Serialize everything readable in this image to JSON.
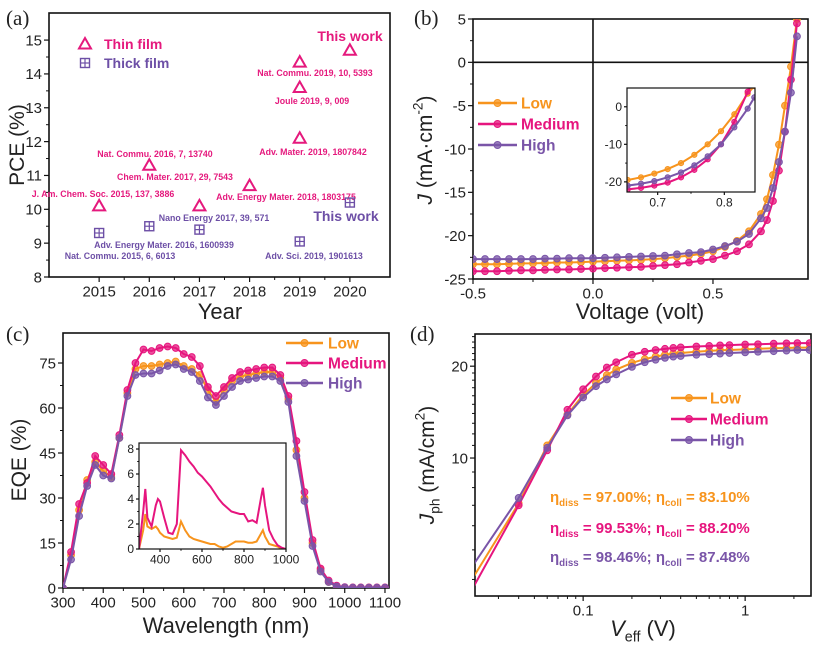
{
  "colors": {
    "low": "#F7941D",
    "medium": "#E6157E",
    "high": "#7A55A8",
    "thin_film": "#E5197D",
    "thick_film": "#6D4FA6"
  },
  "chart_data": [
    {
      "panel_label": "(a)",
      "type": "scatter",
      "xlabel": "Year",
      "ylabel": "PCE (%)",
      "xlim": [
        2014,
        2020.8
      ],
      "ylim": [
        8,
        15.8
      ],
      "xticks": [
        2015,
        2016,
        2017,
        2018,
        2019,
        2020
      ],
      "xtick_labels": [
        "2015",
        "2016",
        "2017",
        "2018",
        "2019",
        "2020"
      ],
      "yticks": [
        8,
        9,
        10,
        11,
        12,
        13,
        14,
        15
      ],
      "ytick_labels": [
        "8",
        "9",
        "10",
        "11",
        "12",
        "13",
        "14",
        "15"
      ],
      "legend_position": "top-left",
      "series": [
        {
          "name": "Thin film",
          "marker": "triangle",
          "color": "#E5197D",
          "points": [
            {
              "x": 2015,
              "y": 10.1,
              "label": "J. Am. Chem. Soc. 2015, 137, 3886"
            },
            {
              "x": 2016,
              "y": 11.3,
              "label": "Nat. Commu. 2016, 7, 13740"
            },
            {
              "x": 2017,
              "y": 10.1,
              "label": "Chem. Mater. 2017, 29, 7543"
            },
            {
              "x": 2018,
              "y": 10.7,
              "label": "Adv. Energy Mater. 2018, 1803175"
            },
            {
              "x": 2019,
              "y": 14.35,
              "label": "Nat. Commu. 2019, 10, 5393"
            },
            {
              "x": 2019,
              "y": 13.6,
              "label": "Joule 2019, 9, 009"
            },
            {
              "x": 2019,
              "y": 12.1,
              "label": "Adv. Mater. 2019, 1807842"
            },
            {
              "x": 2020,
              "y": 14.7,
              "label": "This work"
            }
          ]
        },
        {
          "name": "Thick film",
          "marker": "boxed-plus",
          "color": "#6D4FA6",
          "points": [
            {
              "x": 2015,
              "y": 9.3,
              "label": "Nat. Commu. 2015, 6, 6013"
            },
            {
              "x": 2016,
              "y": 9.5,
              "label": "Adv. Energy Mater. 2016, 1600939"
            },
            {
              "x": 2017,
              "y": 9.4,
              "label": "Nano Energy 2017, 39, 571"
            },
            {
              "x": 2019,
              "y": 9.05,
              "label": "Adv. Sci. 2019, 1901613"
            },
            {
              "x": 2020,
              "y": 10.2,
              "label": "This work"
            }
          ]
        }
      ]
    },
    {
      "panel_label": "(b)",
      "type": "line",
      "xlabel": "Voltage (volt)",
      "ylabel_parts": [
        {
          "t": "J",
          "style": "italic"
        },
        {
          "t": " (mA·cm",
          "style": ""
        },
        {
          "t": "-2",
          "style": "sup"
        },
        {
          "t": ")",
          "style": ""
        }
      ],
      "xlim": [
        -0.5,
        0.896
      ],
      "ylim": [
        -25,
        5
      ],
      "xticks": [
        -0.5,
        0,
        0.5
      ],
      "xtick_labels": [
        "-0.5",
        "0.0",
        "0.5"
      ],
      "yticks": [
        -25,
        -20,
        -15,
        -10,
        -5,
        0,
        5
      ],
      "ytick_labels": [
        "-25",
        "-20",
        "-15",
        "-10",
        "-5",
        "0",
        "5"
      ],
      "zero_lines": true,
      "legend_position": "center-left",
      "x": [
        -0.5,
        -0.45,
        -0.4,
        -0.35,
        -0.3,
        -0.25,
        -0.2,
        -0.15,
        -0.1,
        -0.05,
        0,
        0.05,
        0.1,
        0.15,
        0.2,
        0.25,
        0.3,
        0.35,
        0.4,
        0.45,
        0.5,
        0.55,
        0.6,
        0.65,
        0.7,
        0.725,
        0.75,
        0.775,
        0.8,
        0.825,
        0.85
      ],
      "series": [
        {
          "name": "Low",
          "color": "#F7941D",
          "values": [
            -23.3,
            -23.3,
            -23.3,
            -23.25,
            -23.2,
            -23.2,
            -23.15,
            -23.1,
            -23.1,
            -23.05,
            -23.0,
            -22.95,
            -22.9,
            -22.85,
            -22.8,
            -22.7,
            -22.6,
            -22.45,
            -22.3,
            -22.1,
            -21.8,
            -21.3,
            -20.6,
            -19.5,
            -17.5,
            -15.8,
            -13.0,
            -9.5,
            -5.0,
            -0.5,
            5.0
          ]
        },
        {
          "name": "Medium",
          "color": "#E6157E",
          "values": [
            -24.1,
            -24.1,
            -24.1,
            -24.05,
            -24.0,
            -24.0,
            -23.95,
            -23.9,
            -23.9,
            -23.85,
            -23.8,
            -23.75,
            -23.7,
            -23.65,
            -23.6,
            -23.5,
            -23.4,
            -23.3,
            -23.1,
            -22.9,
            -22.7,
            -22.3,
            -21.8,
            -21.0,
            -19.5,
            -18.2,
            -16.0,
            -12.5,
            -8.0,
            -2.0,
            4.5
          ]
        },
        {
          "name": "High",
          "color": "#7A55A8",
          "values": [
            -22.7,
            -22.7,
            -22.7,
            -22.7,
            -22.7,
            -22.7,
            -22.65,
            -22.65,
            -22.6,
            -22.6,
            -22.6,
            -22.55,
            -22.5,
            -22.45,
            -22.4,
            -22.35,
            -22.3,
            -22.15,
            -22.0,
            -21.9,
            -21.6,
            -21.2,
            -20.7,
            -19.8,
            -18.0,
            -16.8,
            -14.5,
            -11.5,
            -8.0,
            -3.5,
            3.0
          ]
        }
      ],
      "inset": {
        "xlim": [
          0.654,
          0.846
        ],
        "ylim": [
          -22.7,
          5
        ],
        "xticks": [
          0.7,
          0.8
        ],
        "xtick_labels": [
          "0.7",
          "0.8"
        ],
        "yticks": [
          -20,
          -10,
          0
        ],
        "ytick_labels": [
          "-20",
          "-10",
          "0"
        ],
        "x": [
          0.655,
          0.675,
          0.695,
          0.715,
          0.735,
          0.755,
          0.775,
          0.795,
          0.815,
          0.835,
          0.845
        ],
        "series": [
          {
            "name": "Low",
            "color": "#F7941D",
            "values": [
              -19.5,
              -18.8,
              -17.8,
              -16.6,
              -15.0,
              -12.8,
              -10.0,
              -6.5,
              -2.0,
              3.5,
              5.5
            ]
          },
          {
            "name": "Medium",
            "color": "#E6157E",
            "values": [
              -22.0,
              -21.6,
              -21.0,
              -20.2,
              -18.8,
              -16.8,
              -14.0,
              -10.0,
              -4.0,
              4.0,
              7.0
            ]
          },
          {
            "name": "High",
            "color": "#7A55A8",
            "values": [
              -21.0,
              -20.5,
              -19.8,
              -18.8,
              -17.5,
              -15.6,
              -13.2,
              -10.0,
              -5.5,
              -0.5,
              2.5
            ]
          }
        ]
      }
    },
    {
      "panel_label": "(c)",
      "type": "line",
      "xlabel": "Wavelength (nm)",
      "ylabel": "EQE (%)",
      "xlim": [
        300,
        1110
      ],
      "ylim": [
        0,
        85
      ],
      "xticks": [
        300,
        400,
        500,
        600,
        700,
        800,
        900,
        1000,
        1100
      ],
      "xtick_labels": [
        "300",
        "400",
        "500",
        "600",
        "700",
        "800",
        "900",
        "1000",
        "1100"
      ],
      "yticks": [
        0,
        15,
        30,
        45,
        60,
        75
      ],
      "ytick_labels": [
        "0",
        "15",
        "30",
        "45",
        "60",
        "75"
      ],
      "legend_position": "top-right",
      "x": [
        300,
        320,
        340,
        360,
        380,
        400,
        420,
        440,
        460,
        480,
        500,
        520,
        540,
        560,
        580,
        600,
        620,
        640,
        660,
        680,
        700,
        720,
        740,
        760,
        780,
        800,
        820,
        840,
        860,
        880,
        900,
        920,
        940,
        960,
        980,
        1000,
        1020,
        1040,
        1060,
        1080,
        1100
      ],
      "series": [
        {
          "name": "Low",
          "color": "#F7941D",
          "values": [
            0,
            11,
            26,
            36,
            42,
            39,
            37,
            50,
            65,
            73,
            74,
            74,
            74.5,
            75,
            75.5,
            74,
            73,
            71,
            66,
            62,
            66,
            69,
            70.5,
            71,
            71.5,
            72,
            72,
            70,
            63,
            46,
            30,
            15,
            6,
            2,
            0.5,
            0.2,
            0.1,
            0.1,
            0.1,
            0.1,
            0.1
          ]
        },
        {
          "name": "Medium",
          "color": "#E6157E",
          "values": [
            0,
            12,
            28,
            35,
            44,
            41,
            38,
            51,
            66,
            75,
            79.5,
            79,
            80,
            80.5,
            80,
            78,
            77,
            74,
            67,
            64,
            67,
            70,
            72,
            72.5,
            73,
            73.5,
            73.5,
            71,
            64,
            49,
            32,
            16,
            6.5,
            2.5,
            0.8,
            0.3,
            0.2,
            0.2,
            0.2,
            0.2,
            0.2
          ]
        },
        {
          "name": "High",
          "color": "#7A55A8",
          "values": [
            0,
            9.5,
            24,
            34,
            41,
            37.5,
            36.5,
            50,
            64,
            71,
            71.5,
            71.5,
            72.5,
            74,
            74.5,
            73,
            72,
            69,
            63.5,
            61,
            64,
            67,
            69,
            69.5,
            70,
            70.5,
            70.5,
            69,
            62,
            44,
            29,
            14,
            5.5,
            2,
            0.5,
            0.2,
            0.1,
            0.1,
            0.1,
            0.1,
            0.1
          ]
        }
      ],
      "inset": {
        "xlim": [
          300,
          1000
        ],
        "ylim": [
          0,
          8.48
        ],
        "xticks": [
          400,
          600,
          800,
          1000
        ],
        "xtick_labels": [
          "400",
          "600",
          "800",
          "1000"
        ],
        "yticks": [
          0,
          2,
          4,
          6,
          8
        ],
        "ytick_labels": [
          "0",
          "2",
          "4",
          "6",
          "8"
        ],
        "markers": false,
        "x": [
          300,
          320,
          330,
          340,
          360,
          380,
          390,
          400,
          420,
          440,
          460,
          480,
          500,
          520,
          540,
          560,
          580,
          600,
          620,
          640,
          660,
          680,
          700,
          720,
          740,
          760,
          780,
          800,
          820,
          840,
          860,
          880,
          890,
          900,
          920,
          940,
          960,
          980,
          1000
        ],
        "series": [
          {
            "name": "Low",
            "color": "#F7941D",
            "values": [
              0,
              1.5,
              2.8,
              1.8,
              1.6,
              1.8,
              1.6,
              1.3,
              1.0,
              0.9,
              0.8,
              0.9,
              2.2,
              1.5,
              1.0,
              0.8,
              0.7,
              0.6,
              0.5,
              0.4,
              0.4,
              0.2,
              0.1,
              0.2,
              0.4,
              0.6,
              0.6,
              0.6,
              0.5,
              0.5,
              0.6,
              1.2,
              1.5,
              1.0,
              0.4,
              0.3,
              0.2,
              0,
              0
            ]
          },
          {
            "name": "Medium",
            "color": "#E6157E",
            "values": [
              0,
              3.0,
              4.8,
              2.5,
              1.8,
              3.5,
              4.0,
              3.8,
              2.5,
              1.3,
              1.2,
              2.0,
              7.9,
              7.5,
              7.0,
              6.6,
              6.1,
              5.8,
              5.4,
              5.0,
              4.5,
              4.0,
              3.6,
              3.3,
              3.0,
              2.9,
              2.8,
              2.8,
              2.2,
              2.3,
              2.1,
              4.0,
              4.9,
              3.5,
              1.5,
              0.8,
              0.3,
              0.1,
              0
            ]
          }
        ]
      }
    },
    {
      "panel_label": "(d)",
      "type": "line",
      "xscale": "log",
      "yscale": "log",
      "xlabel_parts": [
        {
          "t": "V",
          "style": "italic"
        },
        {
          "t": "eff",
          "style": "sub"
        },
        {
          "t": " (V)",
          "style": ""
        }
      ],
      "ylabel_parts": [
        {
          "t": "J",
          "style": "italic"
        },
        {
          "t": "ph",
          "style": "sub"
        },
        {
          "t": " (mA/cm",
          "style": ""
        },
        {
          "t": "2",
          "style": "sup"
        },
        {
          "t": ")",
          "style": ""
        }
      ],
      "xlim": [
        0.0215,
        2.55
      ],
      "ylim": [
        3.53,
        25.5
      ],
      "xticks": [
        0.1,
        1
      ],
      "xtick_labels": [
        "0.1",
        "1"
      ],
      "yticks": [
        10,
        20
      ],
      "ytick_labels": [
        "10",
        "20"
      ],
      "legend_position": "center-right",
      "x": [
        0.02,
        0.04,
        0.06,
        0.08,
        0.1,
        0.12,
        0.14,
        0.16,
        0.2,
        0.24,
        0.28,
        0.32,
        0.36,
        0.4,
        0.5,
        0.6,
        0.7,
        0.8,
        1,
        1.2,
        1.5,
        1.8,
        2.1,
        2.5
      ],
      "series": [
        {
          "name": "Low",
          "color": "#F7941D",
          "values": [
            3.9,
            7.1,
            11.0,
            13.9,
            16.1,
            17.6,
            18.7,
            19.5,
            20.5,
            21.1,
            21.5,
            21.8,
            22.0,
            22.1,
            22.3,
            22.45,
            22.55,
            22.6,
            22.7,
            22.8,
            22.9,
            22.95,
            23.0,
            23.0
          ]
        },
        {
          "name": "Medium",
          "color": "#E6157E",
          "values": [
            3.6,
            7.0,
            10.6,
            14.4,
            16.8,
            18.5,
            19.8,
            20.6,
            21.8,
            22.3,
            22.6,
            22.8,
            22.95,
            23.05,
            23.2,
            23.3,
            23.4,
            23.45,
            23.55,
            23.6,
            23.7,
            23.75,
            23.8,
            23.8
          ]
        },
        {
          "name": "High",
          "color": "#7A55A8",
          "values": [
            4.3,
            7.4,
            10.8,
            13.8,
            15.8,
            17.2,
            18.1,
            18.8,
            19.9,
            20.6,
            21.0,
            21.3,
            21.5,
            21.6,
            21.8,
            21.9,
            22.0,
            22.1,
            22.2,
            22.3,
            22.4,
            22.5,
            22.6,
            22.6
          ]
        }
      ],
      "annotations": [
        {
          "color": "#F7941D",
          "parts": [
            {
              "t": "η",
              "style": ""
            },
            {
              "t": "diss",
              "style": "sub"
            },
            {
              "t": " = 97.00%;  ",
              "style": ""
            },
            {
              "t": "η",
              "style": ""
            },
            {
              "t": "coll",
              "style": "sub"
            },
            {
              "t": " = 83.10%",
              "style": ""
            }
          ]
        },
        {
          "color": "#E6157E",
          "parts": [
            {
              "t": "η",
              "style": ""
            },
            {
              "t": "diss",
              "style": "sub"
            },
            {
              "t": " = 99.53%;  ",
              "style": ""
            },
            {
              "t": "η",
              "style": ""
            },
            {
              "t": "coll",
              "style": "sub"
            },
            {
              "t": " = 88.20%",
              "style": ""
            }
          ]
        },
        {
          "color": "#7A55A8",
          "parts": [
            {
              "t": "η",
              "style": ""
            },
            {
              "t": "diss",
              "style": "sub"
            },
            {
              "t": " = 98.46%;  ",
              "style": ""
            },
            {
              "t": "η",
              "style": ""
            },
            {
              "t": "coll",
              "style": "sub"
            },
            {
              "t": " = 87.48%",
              "style": ""
            }
          ]
        }
      ]
    }
  ]
}
